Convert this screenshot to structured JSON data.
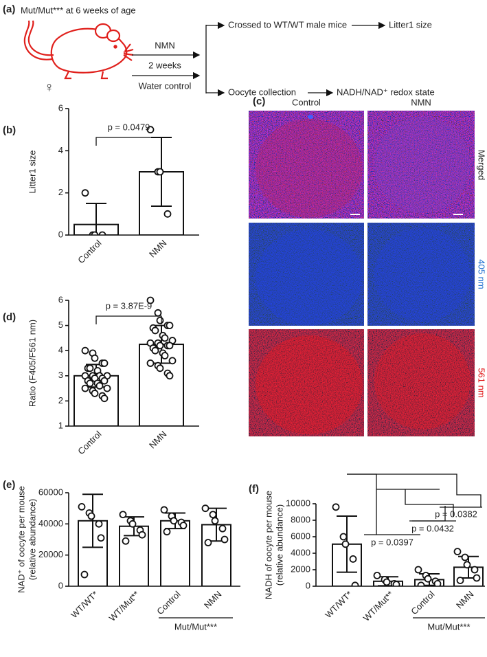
{
  "panel_labels": [
    "(a)",
    "(b)",
    "(c)",
    "(d)",
    "(e)",
    "(f)"
  ],
  "diagram": {
    "header": "Mut/Mut*** at 6 weeks of age",
    "symbol": "♀",
    "treatments": [
      "NMN",
      "2 weeks",
      "Water control"
    ],
    "outcomes": [
      [
        "Crossed  to WT/WT male mice",
        "Litter1 size"
      ],
      [
        "Oocyte collection",
        "NADH/NAD⁺ redox state"
      ]
    ]
  },
  "images": {
    "columns": [
      "Control",
      "NMN"
    ],
    "rows": [
      "Merged",
      "405 nm",
      "561 nm"
    ]
  },
  "chart_data": [
    {
      "type": "bar",
      "ylabel": [
        "Litter1 size"
      ],
      "categories": [
        "Control",
        "NMN"
      ],
      "values": [
        0.5,
        3
      ],
      "errors": [
        1,
        1.63
      ],
      "points": [
        [
          2,
          0,
          0,
          0
        ],
        [
          5,
          3,
          3,
          1
        ]
      ],
      "ylim": [
        0,
        6
      ],
      "yticks": [
        0,
        2,
        4,
        6
      ],
      "annotations": [
        "p = 0.0479"
      ]
    },
    {
      "type": "bar",
      "ylabel": [
        "Ratio (F405/F561 nm)"
      ],
      "categories": [
        "Control",
        "NMN"
      ],
      "values": [
        3.0,
        4.25
      ],
      "errors": [
        0.45,
        0.75
      ],
      "points": [
        [
          4.0,
          3.9,
          3.7,
          3.5,
          3.5,
          3.3,
          3.3,
          3.2,
          3.0,
          3.0,
          3.0,
          3.0,
          2.9,
          2.9,
          2.8,
          2.8,
          2.7,
          2.7,
          2.6,
          2.5,
          2.5,
          2.4,
          2.3,
          2.2,
          2.1
        ],
        [
          6.0,
          5.5,
          5.2,
          5.0,
          5.0,
          4.9,
          4.8,
          4.6,
          4.5,
          4.4,
          4.3,
          4.3,
          4.2,
          4.2,
          4.2,
          4.1,
          4.0,
          3.9,
          3.8,
          3.6,
          3.5,
          3.4,
          3.3,
          3.1,
          3.0
        ]
      ],
      "ylim": [
        1,
        6
      ],
      "yticks": [
        1,
        2,
        3,
        4,
        5,
        6
      ],
      "annotations": [
        "p = 3.87E-9"
      ]
    },
    {
      "type": "bar",
      "ylabel": [
        "NAD⁺ of oocyte per mouse",
        "(relative abundance)"
      ],
      "categories": [
        "WT/WT*",
        "WT/Mut**",
        "Control",
        "NMN"
      ],
      "group_label": "Mut/Mut***",
      "values": [
        42000,
        38500,
        42000,
        39500
      ],
      "errors": [
        17000,
        6000,
        5000,
        10500
      ],
      "points": [
        [
          51000,
          47000,
          45000,
          40000,
          31000,
          7500
        ],
        [
          46000,
          42000,
          40000,
          36000,
          33000,
          29000
        ],
        [
          49000,
          45000,
          42000,
          41000,
          39000,
          35000
        ],
        [
          50000,
          46000,
          42000,
          37000,
          30000,
          28000
        ]
      ],
      "ylim": [
        0,
        60000
      ],
      "yticks": [
        0,
        20000,
        40000,
        60000
      ]
    },
    {
      "type": "bar",
      "ylabel": [
        "NADH of oocyte per mouse",
        "(relative abundance)"
      ],
      "categories": [
        "WT/WT*",
        "WT/Mut**",
        "Control",
        "NMN"
      ],
      "group_label": "Mut/Mut***",
      "values": [
        5100,
        600,
        800,
        2300
      ],
      "errors": [
        3400,
        550,
        700,
        1300
      ],
      "points": [
        [
          9600,
          6000,
          5100,
          3300,
          100
        ],
        [
          1300,
          800,
          500,
          300,
          200
        ],
        [
          2000,
          1300,
          900,
          600,
          300,
          100
        ],
        [
          4200,
          3500,
          2600,
          2000,
          1000,
          700
        ]
      ],
      "ylim": [
        0,
        10000
      ],
      "yticks": [
        0,
        2000,
        4000,
        6000,
        8000,
        10000
      ],
      "annotations": [
        "p = 0.0397",
        "p = 0.0432",
        "p = 0.0382"
      ]
    }
  ]
}
